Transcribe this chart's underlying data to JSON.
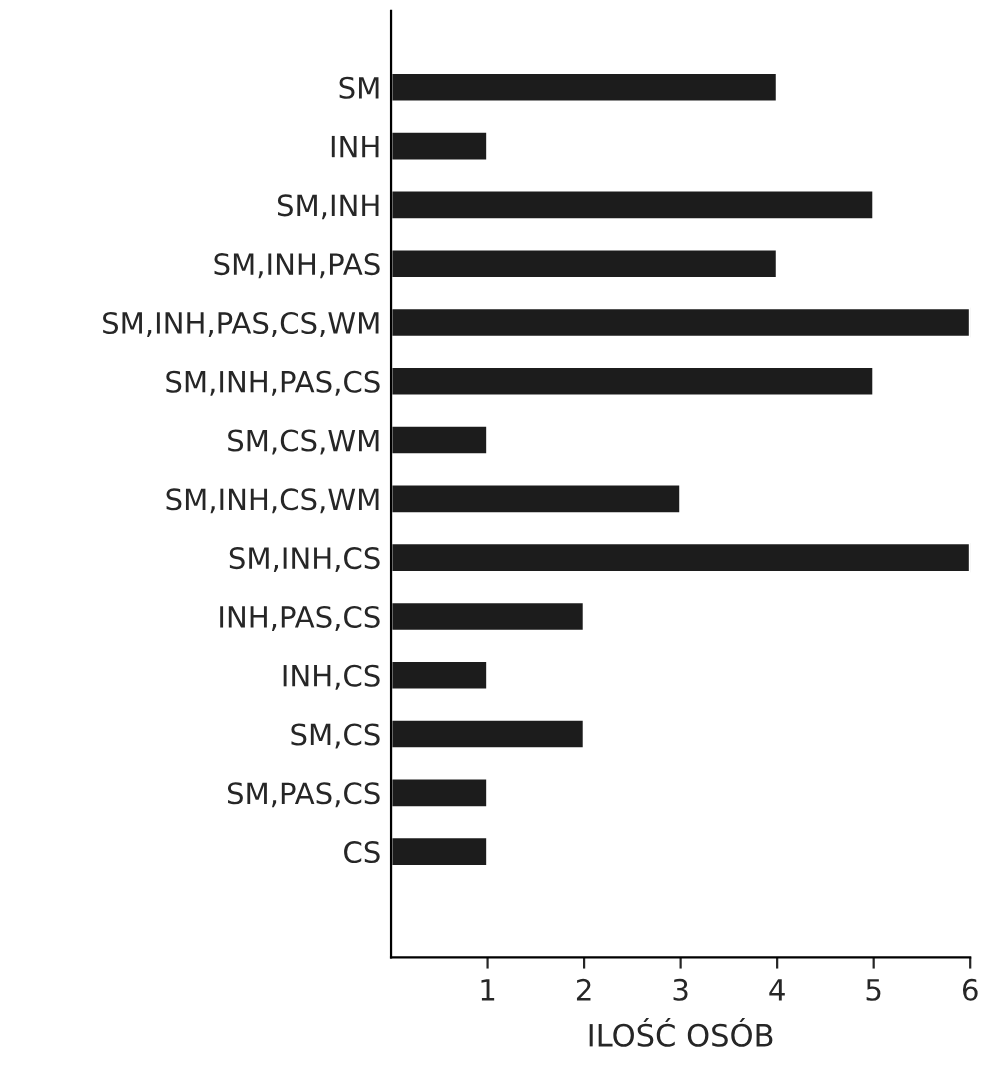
{
  "chart_data": {
    "type": "bar",
    "orientation": "horizontal",
    "xlabel": "ILOŚĆ OSÓB",
    "categories": [
      "SM",
      "INH",
      "SM,INH",
      "SM,INH,PAS",
      "SM,INH,PAS,CS,WM",
      "SM,INH,PAS,CS",
      "SM,CS,WM",
      "SM,INH,CS,WM",
      "SM,INH,CS",
      "INH,PAS,CS",
      "INH,CS",
      "SM,CS",
      "SM,PAS,CS",
      "CS"
    ],
    "values": [
      4,
      1,
      5,
      4,
      6,
      5,
      1,
      3,
      6,
      2,
      1,
      2,
      1,
      1
    ],
    "color": "#1c1c1c",
    "xlim": [
      0,
      6
    ],
    "xticks": [
      1,
      2,
      3,
      4,
      5,
      6
    ],
    "grid": false,
    "legend": false
  }
}
